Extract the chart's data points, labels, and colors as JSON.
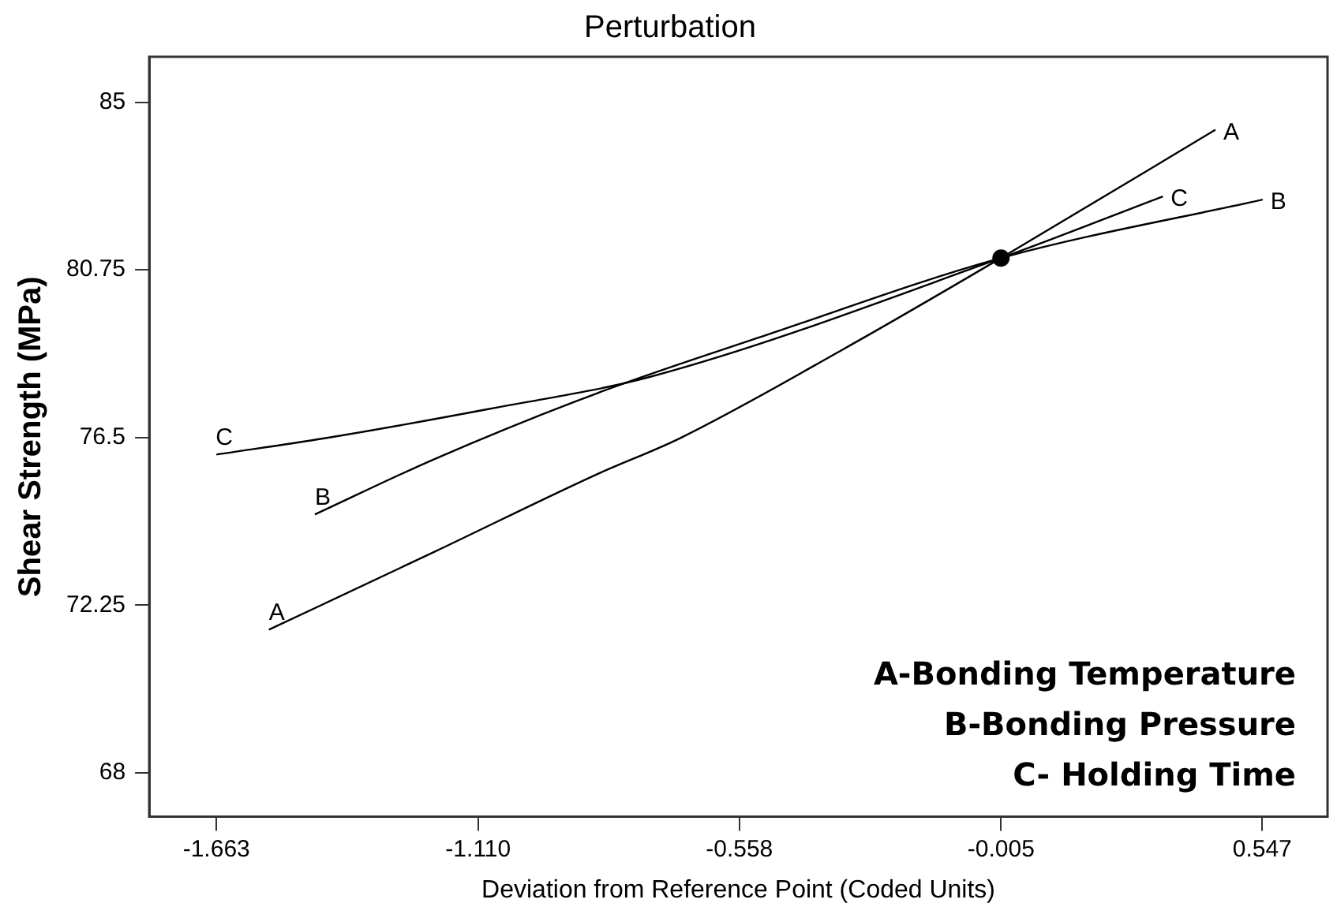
{
  "chart_data": {
    "type": "line",
    "title": "Perturbation",
    "xlabel": "Deviation from Reference Point (Coded Units)",
    "ylabel": "Shear Strength (MPa)",
    "xlim": [
      -1.805,
      0.685
    ],
    "ylim": [
      66.89,
      86.15
    ],
    "xticks": [
      -1.663,
      {
        "value": -1.11,
        "label": "-1.110"
      },
      -0.558,
      -0.005,
      0.547
    ],
    "yticks": [
      68,
      72.25,
      76.5,
      80.75,
      85
    ],
    "grid": false,
    "legend": false,
    "marker": "none",
    "line_style": "solid",
    "series": [
      {
        "name": "A",
        "color": "#000000",
        "x": [
          -1.552,
          -1.203,
          -0.857,
          -0.684,
          -0.338,
          -0.005,
          0.448
        ],
        "values": [
          71.63,
          73.6,
          75.58,
          76.48,
          78.74,
          81.05,
          84.3
        ]
      },
      {
        "name": "B",
        "color": "#000000",
        "x": [
          -1.455,
          -1.203,
          -0.857,
          -0.5,
          -0.005,
          0.548
        ],
        "values": [
          74.55,
          75.95,
          77.63,
          79.1,
          81.05,
          82.53
        ]
      },
      {
        "name": "C",
        "color": "#000000",
        "x": [
          -1.663,
          -1.435,
          -1.089,
          -0.743,
          -0.005,
          0.337
        ],
        "values": [
          76.07,
          76.48,
          77.22,
          78.05,
          81.05,
          82.61
        ]
      },
      {
        "type": "scatter",
        "color": "#000000",
        "marker": "circle",
        "x": [
          -0.005
        ],
        "values": [
          81.05
        ]
      }
    ],
    "annotations": [
      "A-Bonding Temperature",
      "B-Bonding Pressure",
      "C- Holding Time"
    ]
  }
}
